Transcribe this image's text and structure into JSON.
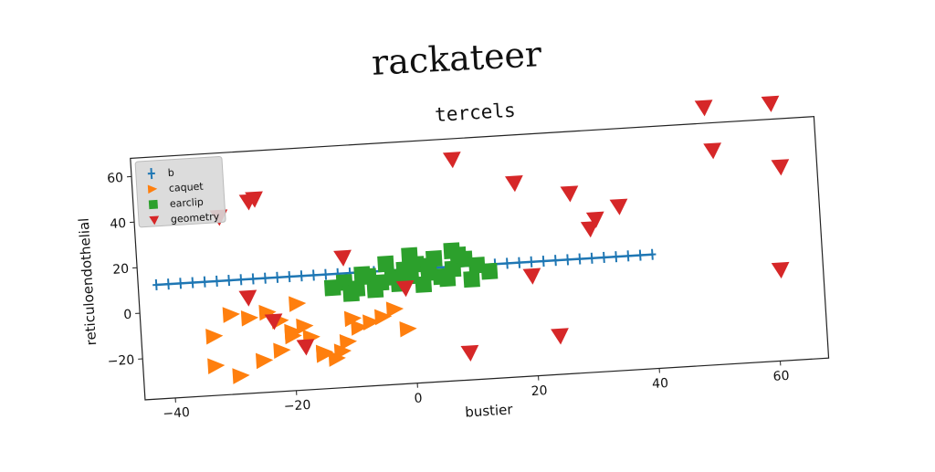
{
  "suptitle": "rackateer",
  "chart_data": {
    "type": "scatter",
    "title": "tercels",
    "xlabel": "bustier",
    "ylabel": "reticuloendothelial",
    "xlim": [
      -45,
      68
    ],
    "ylim": [
      -38,
      68
    ],
    "xticks": [
      -40,
      -20,
      0,
      20,
      40,
      60
    ],
    "yticks": [
      -20,
      0,
      20,
      40,
      60
    ],
    "xtick_labels": [
      "−40",
      "−20",
      "0",
      "20",
      "40",
      "60"
    ],
    "ytick_labels": [
      "−20",
      "0",
      "20",
      "40",
      "60"
    ],
    "legend_position": "top-left",
    "series": [
      {
        "name": "b",
        "marker": "plus",
        "color": "#1f77b4",
        "x": [
          -42,
          -40,
          -38,
          -36,
          -34,
          -32,
          -30,
          -28,
          -26,
          -24,
          -22,
          -20,
          -18,
          -16,
          -14,
          -12,
          -10,
          -8,
          -6,
          -4,
          -2,
          0,
          2,
          4,
          6,
          8,
          10,
          12,
          14,
          16,
          18,
          20,
          22,
          24,
          26,
          28,
          30,
          32,
          34,
          36,
          38,
          40
        ],
        "y": [
          12,
          12,
          12,
          12,
          12,
          12,
          12,
          12,
          12,
          12,
          12,
          12,
          12,
          12,
          12,
          12,
          12,
          12,
          12,
          12,
          12,
          12,
          12,
          12,
          12,
          12,
          12,
          12,
          12,
          12,
          12,
          12,
          12,
          12,
          12,
          12,
          12,
          12,
          12,
          12,
          12,
          12
        ]
      },
      {
        "name": "caquet",
        "marker": "triangle-right",
        "color": "#ff7f0e",
        "x": [
          -33,
          -30,
          -27,
          -24,
          -22,
          -20,
          -19,
          -17,
          -15,
          -13,
          -11,
          -9,
          -7,
          -5,
          -3,
          -1,
          -33,
          -29,
          -25,
          -22,
          -20,
          -18,
          -15,
          -12,
          -10
        ],
        "y": [
          -12,
          -3,
          -5,
          -3,
          -7,
          -12,
          0,
          -15,
          -23,
          -25,
          -18,
          -12,
          -10,
          -8,
          -5,
          -14,
          -25,
          -30,
          -24,
          -20,
          -14,
          -10,
          -22,
          -22,
          -8
        ]
      },
      {
        "name": "earclip",
        "marker": "square",
        "color": "#2ca02c",
        "x": [
          -13,
          -11,
          -9,
          -7,
          -5,
          -3,
          -1,
          1,
          3,
          5,
          7,
          9,
          11,
          13,
          -10,
          -6,
          -2,
          2,
          6,
          10,
          -4,
          0,
          4,
          8,
          -8,
          0,
          3,
          7
        ],
        "y": [
          6,
          8,
          5,
          10,
          7,
          9,
          12,
          14,
          10,
          8,
          11,
          15,
          12,
          9,
          3,
          4,
          6,
          5,
          7,
          6,
          15,
          18,
          16,
          17,
          11,
          9,
          13,
          19
        ]
      },
      {
        "name": "geometry",
        "marker": "triangle-down",
        "color": "#d62728",
        "x": [
          -31,
          -27,
          -23,
          -18,
          -11,
          -26,
          -25,
          -1,
          8,
          18,
          27,
          31,
          35,
          50,
          51,
          61,
          62,
          61,
          30,
          20,
          24,
          9
        ],
        "y": [
          40,
          4,
          -7,
          -19,
          19,
          46,
          47,
          4,
          59,
          47,
          41,
          29,
          34,
          75,
          56,
          75,
          47,
          2,
          25,
          6,
          -21,
          -26
        ]
      }
    ]
  }
}
